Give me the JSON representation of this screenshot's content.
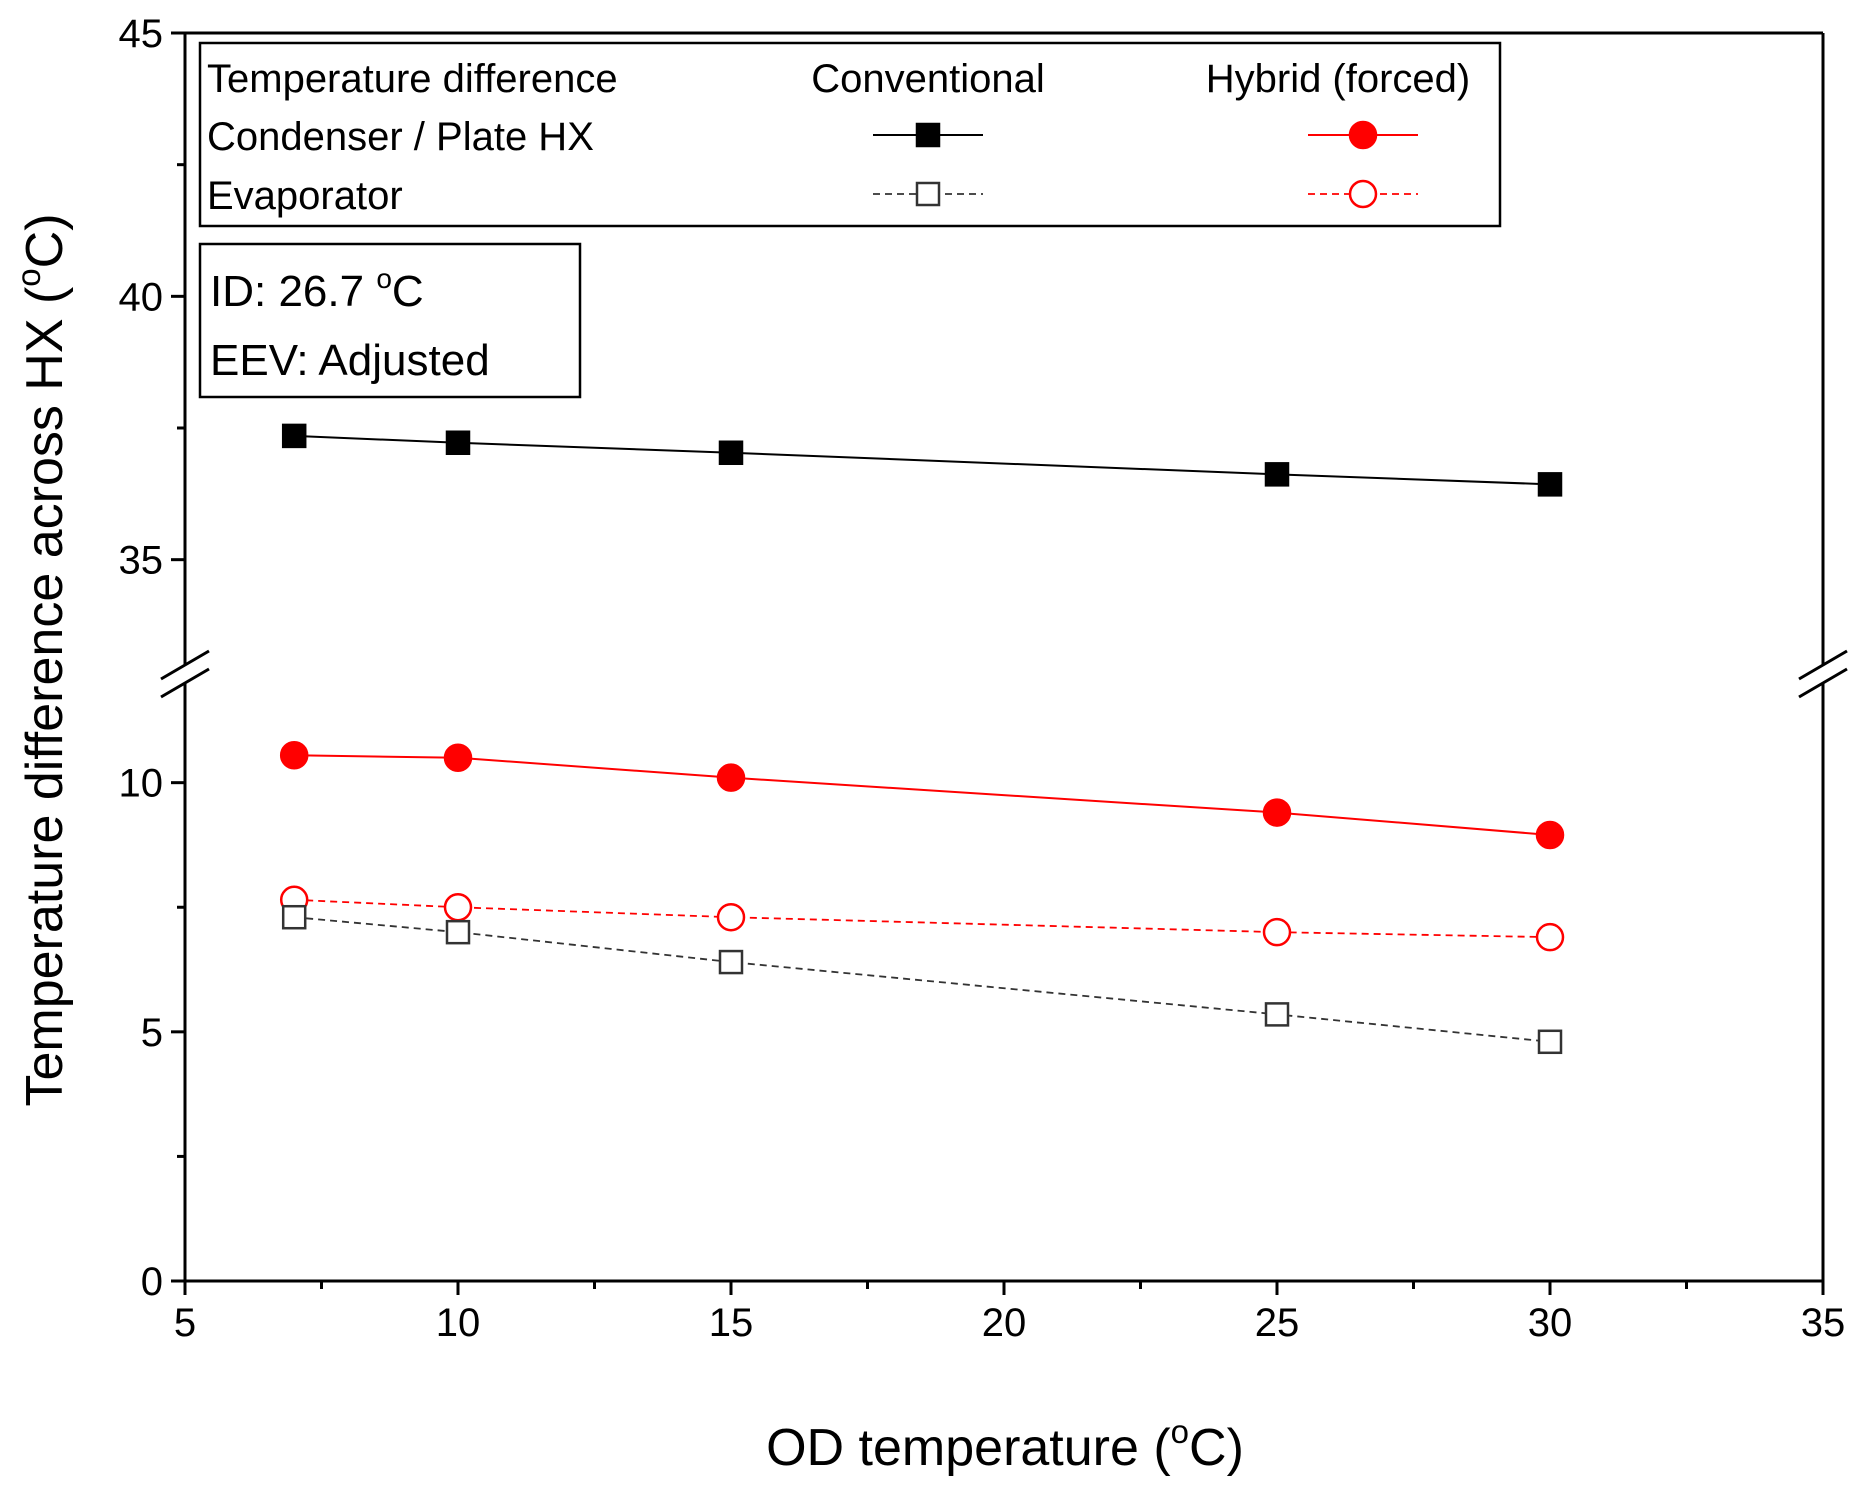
{
  "chart_data": {
    "type": "line",
    "title": "",
    "xlabel": "OD temperature (°C)",
    "ylabel": "Temperature difference across HX (°C)",
    "xlabel_parts": [
      "OD temperature (",
      "o",
      "C)"
    ],
    "ylabel_parts": [
      "Temperature difference across HX (",
      "o",
      "C)"
    ],
    "xlim": [
      5,
      35
    ],
    "ylim_lower": [
      0,
      12
    ],
    "ylim_upper": [
      33,
      45
    ],
    "y_axis_break": [
      12,
      33
    ],
    "x_ticks": [
      5,
      10,
      15,
      20,
      25,
      30,
      35
    ],
    "x_tick_labels": [
      "5",
      "10",
      "15",
      "20",
      "25",
      "30",
      "35"
    ],
    "y_ticks_lower": [
      0,
      5,
      10
    ],
    "y_tick_labels_lower": [
      "0",
      "5",
      "10"
    ],
    "y_ticks_upper": [
      35,
      40,
      45
    ],
    "y_tick_labels_upper": [
      "35",
      "40",
      "45"
    ],
    "x": [
      7,
      10,
      15,
      25,
      30
    ],
    "series": [
      {
        "name": "Conventional - Condenser / Plate HX",
        "color": "#000000",
        "marker": "square",
        "filled": true,
        "dashed": false,
        "values": [
          37.35,
          37.22,
          37.03,
          36.62,
          36.43
        ]
      },
      {
        "name": "Hybrid (forced) - Condenser / Plate HX",
        "color": "#ff0000",
        "marker": "circle",
        "filled": true,
        "dashed": false,
        "values": [
          10.55,
          10.5,
          10.1,
          9.4,
          8.95
        ]
      },
      {
        "name": "Hybrid (forced) - Evaporator",
        "color": "#ff0000",
        "marker": "circle",
        "filled": false,
        "dashed": true,
        "values": [
          7.65,
          7.5,
          7.3,
          7.0,
          6.9
        ]
      },
      {
        "name": "Conventional - Evaporator",
        "color": "#333333",
        "marker": "square",
        "filled": false,
        "dashed": true,
        "values": [
          7.3,
          7.0,
          6.4,
          5.35,
          4.8
        ]
      }
    ],
    "legend": {
      "header": "Temperature difference",
      "columns": [
        "Conventional",
        "Hybrid (forced)"
      ],
      "rows": [
        "Condenser / Plate HX",
        "Evaporator"
      ],
      "position": "top"
    },
    "annotations": {
      "line1_parts": [
        "ID: 26.7 ",
        "o",
        "C"
      ],
      "line2": "EEV: Adjusted",
      "position": "top-left"
    },
    "grid": false
  }
}
